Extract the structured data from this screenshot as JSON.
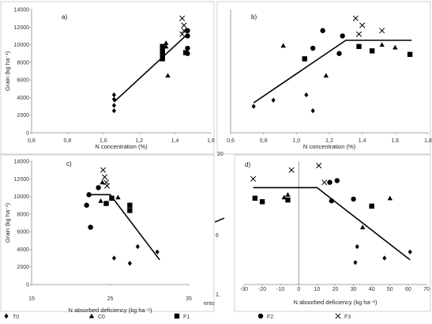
{
  "chart_data": [
    {
      "type": "scatter",
      "panel": "a)",
      "xlabel": "N concentration (%)",
      "ylabel": "Grain (kg ha⁻¹)",
      "xlim": [
        0.6,
        1.6
      ],
      "ylim": [
        0,
        14000
      ],
      "xticks": [
        "0,6",
        "0,8",
        "1,0",
        "1,2",
        "1,4",
        "1,6"
      ],
      "yticks": [
        "0",
        "2000",
        "4000",
        "6000",
        "8000",
        "10000",
        "12000",
        "14000"
      ],
      "fit_line": [
        [
          1.06,
          3500
        ],
        [
          1.47,
          11200
        ]
      ],
      "series": [
        {
          "name": "T0",
          "marker": "diamond",
          "points": [
            [
              1.06,
              4300
            ],
            [
              1.06,
              3800
            ],
            [
              1.06,
              3100
            ],
            [
              1.06,
              2500
            ]
          ]
        },
        {
          "name": "C0",
          "marker": "triangle",
          "points": [
            [
              1.35,
              9800
            ],
            [
              1.35,
              10200
            ],
            [
              1.36,
              6500
            ]
          ]
        },
        {
          "name": "F1",
          "marker": "square",
          "points": [
            [
              1.33,
              9800
            ],
            [
              1.33,
              9300
            ],
            [
              1.33,
              8900
            ],
            [
              1.33,
              8400
            ],
            [
              1.46,
              9100
            ]
          ]
        },
        {
          "name": "F2",
          "marker": "circle",
          "points": [
            [
              1.47,
              11600
            ],
            [
              1.47,
              11000
            ],
            [
              1.47,
              9600
            ],
            [
              1.47,
              9000
            ]
          ]
        },
        {
          "name": "F3",
          "marker": "x",
          "points": [
            [
              1.44,
              13000
            ],
            [
              1.45,
              12200
            ],
            [
              1.45,
              11600
            ],
            [
              1.44,
              11200
            ]
          ]
        }
      ]
    },
    {
      "type": "scatter",
      "panel": "b)",
      "xlabel": "N concentration (%)",
      "ylabel": "",
      "xlim": [
        0.6,
        1.8
      ],
      "ylim": [
        0,
        14000
      ],
      "xticks": [
        "0,6",
        "0,8",
        "1,0",
        "1,2",
        "1,4",
        "1,6",
        "1,8"
      ],
      "fit_line": [
        [
          0.74,
          3400
        ],
        [
          1.3,
          10500
        ],
        [
          1.7,
          10500
        ]
      ],
      "series": [
        {
          "name": "T0",
          "marker": "diamond",
          "points": [
            [
              0.74,
              3000
            ],
            [
              0.86,
              3700
            ],
            [
              1.06,
              4300
            ],
            [
              1.1,
              2500
            ]
          ]
        },
        {
          "name": "C0",
          "marker": "triangle",
          "points": [
            [
              0.92,
              9900
            ],
            [
              1.18,
              6500
            ],
            [
              1.52,
              10000
            ],
            [
              1.6,
              9700
            ]
          ]
        },
        {
          "name": "F1",
          "marker": "square",
          "points": [
            [
              1.05,
              8400
            ],
            [
              1.38,
              9800
            ],
            [
              1.46,
              9300
            ],
            [
              1.69,
              8900
            ]
          ]
        },
        {
          "name": "F2",
          "marker": "circle",
          "points": [
            [
              1.1,
              9600
            ],
            [
              1.16,
              11600
            ],
            [
              1.26,
              9000
            ],
            [
              1.28,
              11000
            ]
          ]
        },
        {
          "name": "F3",
          "marker": "x",
          "points": [
            [
              1.36,
              13000
            ],
            [
              1.4,
              12200
            ],
            [
              1.38,
              11200
            ],
            [
              1.52,
              11600
            ]
          ]
        }
      ]
    },
    {
      "type": "scatter",
      "panel": "c)",
      "xlabel": "N absorbed deficiency (kg ha⁻¹)",
      "ylabel": "Grain (kg ha⁻¹)",
      "xlim": [
        15,
        35
      ],
      "ylim": [
        0,
        14000
      ],
      "xticks": [
        "15",
        "25",
        "35"
      ],
      "yticks": [
        "0",
        "2000",
        "4000",
        "6000",
        "8000",
        "10000",
        "12000",
        "14000"
      ],
      "fit_line": [
        [
          22.0,
          10200
        ],
        [
          25.0,
          10200
        ],
        [
          31.3,
          2800
        ]
      ],
      "series": [
        {
          "name": "T0",
          "marker": "diamond",
          "points": [
            [
              25.5,
              3000
            ],
            [
              28.5,
              4300
            ],
            [
              27.5,
              2400
            ],
            [
              31.0,
              3700
            ]
          ]
        },
        {
          "name": "C0",
          "marker": "triangle",
          "points": [
            [
              24.0,
              11600
            ],
            [
              26.0,
              9900
            ],
            [
              23.8,
              9500
            ]
          ]
        },
        {
          "name": "F1",
          "marker": "square",
          "points": [
            [
              24.5,
              9200
            ],
            [
              25.2,
              9800
            ],
            [
              27.5,
              9000
            ],
            [
              27.5,
              8400
            ]
          ]
        },
        {
          "name": "F2",
          "marker": "circle",
          "points": [
            [
              22.0,
              9000
            ],
            [
              22.3,
              10200
            ],
            [
              23.5,
              11000
            ],
            [
              22.5,
              6500
            ]
          ]
        },
        {
          "name": "F3",
          "marker": "x",
          "points": [
            [
              24.1,
              13000
            ],
            [
              24.3,
              12200
            ],
            [
              24.5,
              11600
            ],
            [
              24.6,
              11200
            ]
          ]
        }
      ]
    },
    {
      "type": "scatter",
      "panel": "d)",
      "xlabel": "N absorbed deficiency (kg ha⁻¹)",
      "ylabel": "",
      "xlim": [
        -30,
        70
      ],
      "ylim": [
        0,
        14000
      ],
      "xticks": [
        "-30",
        "-20",
        "-10",
        "0",
        "10",
        "20",
        "30",
        "40",
        "50",
        "60",
        "70"
      ],
      "fit_line": [
        [
          -25,
          11000
        ],
        [
          10,
          11000
        ],
        [
          61,
          2800
        ]
      ],
      "series": [
        {
          "name": "T0",
          "marker": "diamond",
          "points": [
            [
              32,
              4300
            ],
            [
              31,
              2500
            ],
            [
              47,
              3000
            ],
            [
              61,
              3700
            ]
          ]
        },
        {
          "name": "C0",
          "marker": "triangle",
          "points": [
            [
              -8,
              9900
            ],
            [
              -6,
              10200
            ],
            [
              35,
              6500
            ],
            [
              50,
              9800
            ]
          ]
        },
        {
          "name": "F1",
          "marker": "square",
          "points": [
            [
              -24,
              9800
            ],
            [
              -20,
              9400
            ],
            [
              -6,
              9600
            ],
            [
              40,
              8900
            ]
          ]
        },
        {
          "name": "F2",
          "marker": "circle",
          "points": [
            [
              17,
              11600
            ],
            [
              21,
              11800
            ],
            [
              18,
              9500
            ],
            [
              30,
              9700
            ]
          ]
        },
        {
          "name": "F3",
          "marker": "x",
          "points": [
            [
              -25,
              12000
            ],
            [
              -4,
              13000
            ],
            [
              11,
              13500
            ],
            [
              14,
              11600
            ]
          ]
        }
      ]
    }
  ],
  "legend": [
    {
      "label": "T0",
      "marker": "diamond"
    },
    {
      "label": "C0",
      "marker": "triangle"
    },
    {
      "label": "F1",
      "marker": "square"
    },
    {
      "label": "F2",
      "marker": "circle"
    },
    {
      "label": "F3",
      "marker": "x"
    }
  ],
  "stray_fragments": [
    "20",
    "1,",
    "ento",
    "6"
  ]
}
